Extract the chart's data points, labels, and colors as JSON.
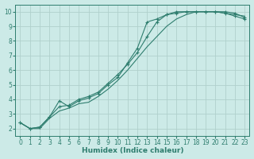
{
  "xlabel": "Humidex (Indice chaleur)",
  "bg_color": "#cceae7",
  "grid_color": "#b0d0cc",
  "line_color": "#2e7d6e",
  "xlim": [
    -0.5,
    23.5
  ],
  "ylim": [
    1.5,
    10.5
  ],
  "xticks": [
    0,
    1,
    2,
    3,
    4,
    5,
    6,
    7,
    8,
    9,
    10,
    11,
    12,
    13,
    14,
    15,
    16,
    17,
    18,
    19,
    20,
    21,
    22,
    23
  ],
  "yticks": [
    2,
    3,
    4,
    5,
    6,
    7,
    8,
    9,
    10
  ],
  "series": [
    {
      "x": [
        0,
        1,
        2,
        3,
        4,
        5,
        6,
        7,
        8,
        9,
        10,
        11,
        12,
        13,
        14,
        15,
        16,
        17,
        18,
        19,
        20,
        21,
        22,
        23
      ],
      "y": [
        2.4,
        2.0,
        2.0,
        2.7,
        3.2,
        3.4,
        3.7,
        3.8,
        4.2,
        4.7,
        5.3,
        6.0,
        6.8,
        7.6,
        8.3,
        9.0,
        9.5,
        9.8,
        10.0,
        10.0,
        10.0,
        9.9,
        9.8,
        9.7
      ],
      "marker": false
    },
    {
      "x": [
        0,
        1,
        2,
        3,
        4,
        5,
        6,
        7,
        8,
        9,
        10,
        11,
        12,
        13,
        14,
        15,
        16,
        17,
        18,
        19,
        20,
        21,
        22,
        23
      ],
      "y": [
        2.4,
        2.0,
        2.1,
        2.8,
        3.5,
        3.6,
        4.0,
        4.2,
        4.5,
        5.1,
        5.7,
        6.4,
        7.2,
        8.3,
        9.3,
        9.8,
        10.0,
        10.0,
        10.0,
        10.0,
        10.0,
        9.9,
        9.7,
        9.5
      ],
      "marker": true
    },
    {
      "x": [
        0,
        1,
        2,
        3,
        4,
        5,
        6,
        7,
        8,
        9,
        10,
        11,
        12,
        13,
        14,
        15,
        16,
        17,
        18,
        19,
        20,
        21,
        22,
        23
      ],
      "y": [
        2.4,
        2.0,
        2.1,
        2.8,
        3.9,
        3.5,
        3.9,
        4.1,
        4.4,
        5.0,
        5.5,
        6.5,
        7.5,
        9.3,
        9.5,
        9.8,
        9.9,
        10.0,
        10.0,
        10.0,
        10.0,
        10.0,
        9.9,
        9.6
      ],
      "marker": true
    }
  ]
}
